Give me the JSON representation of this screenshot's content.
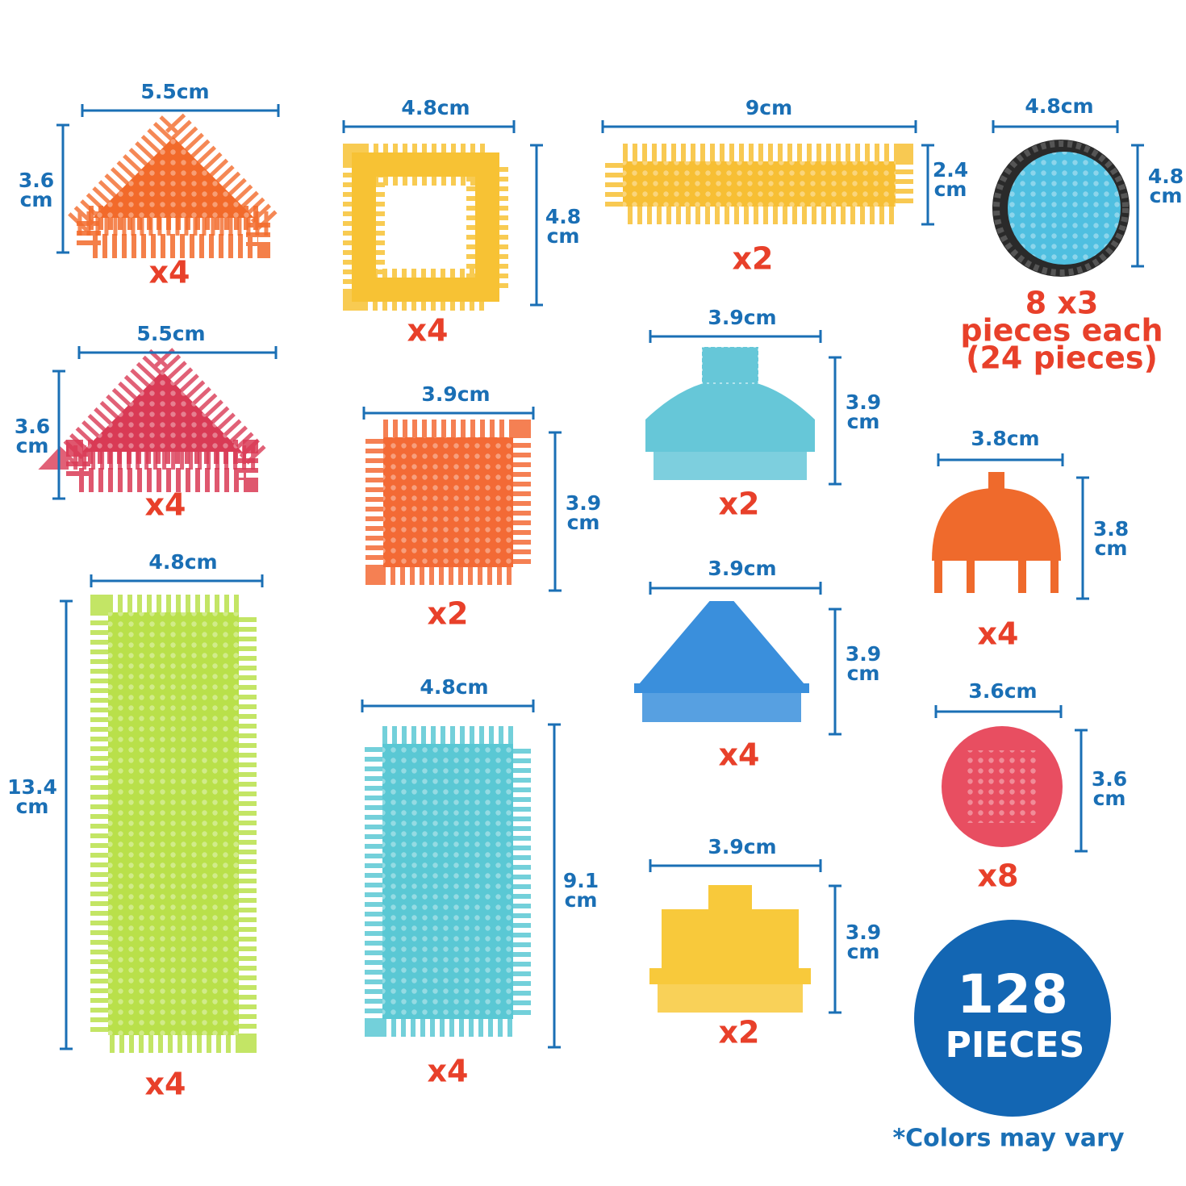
{
  "pieces": [
    {
      "width": "5.5cm",
      "height": {
        "value": "3.6",
        "unit": "cm"
      },
      "count": [
        "x4"
      ]
    },
    {
      "width": "4.8cm",
      "height": {
        "value": "4.8",
        "unit": "cm"
      },
      "count": [
        "x4"
      ]
    },
    {
      "width": "9cm",
      "height": {
        "value": "2.4",
        "unit": "cm"
      },
      "count": [
        "x2"
      ]
    },
    {
      "width": "4.8cm",
      "height": {
        "value": "4.8",
        "unit": "cm"
      },
      "count": [
        "8 x3",
        "pieces each",
        "(24 pieces)"
      ]
    },
    {
      "width": "5.5cm",
      "height": {
        "value": "3.6",
        "unit": "cm"
      },
      "count": [
        "x4"
      ]
    },
    {
      "width": "3.9cm",
      "height": {
        "value": "3.9",
        "unit": "cm"
      },
      "count": [
        "x2"
      ]
    },
    {
      "width": "3.9cm",
      "height": {
        "value": "3.9",
        "unit": "cm"
      },
      "count": [
        "x2"
      ]
    },
    {
      "width": "3.8cm",
      "height": {
        "value": "3.8",
        "unit": "cm"
      },
      "count": [
        "x4"
      ]
    },
    {
      "width": "4.8cm",
      "height": {
        "value": "13.4",
        "unit": "cm"
      },
      "count": [
        "x4"
      ]
    },
    {
      "width": "3.9cm",
      "height": {
        "value": "3.9",
        "unit": "cm"
      },
      "count": [
        "x4"
      ]
    },
    {
      "width": "3.6cm",
      "height": {
        "value": "3.6",
        "unit": "cm"
      },
      "count": [
        "x8"
      ]
    },
    {
      "width": "4.8cm",
      "height": {
        "value": "9.1",
        "unit": "cm"
      },
      "count": [
        "x4"
      ]
    },
    {
      "width": "3.9cm",
      "height": {
        "value": "3.9",
        "unit": "cm"
      },
      "count": [
        "x2"
      ]
    }
  ],
  "badge": {
    "number": "128",
    "label": "PIECES"
  },
  "note": "*Colors may vary"
}
